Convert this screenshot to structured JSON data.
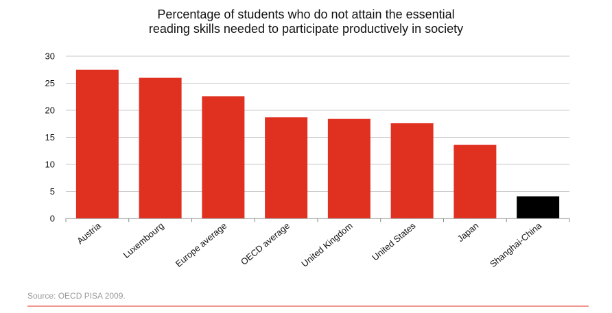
{
  "chart_data": {
    "type": "bar",
    "title_lines": [
      "Percentage of students who do not attain the essential",
      "reading skills needed to participate productively in society"
    ],
    "categories": [
      "Austria",
      "Luxembourg",
      "Europe average",
      "OECD average",
      "United Kingdom",
      "United States",
      "Japan",
      "Shanghai-China"
    ],
    "values": [
      27.5,
      26.0,
      22.6,
      18.7,
      18.4,
      17.6,
      13.6,
      4.1
    ],
    "bar_colors": [
      "#e03020",
      "#e03020",
      "#e03020",
      "#e03020",
      "#e03020",
      "#e03020",
      "#e03020",
      "#000000"
    ],
    "ylim": [
      0,
      30
    ],
    "yticks": [
      0,
      5,
      10,
      15,
      20,
      25,
      30
    ],
    "grid": true,
    "source": "Source: OECD PISA 2009."
  },
  "colors": {
    "bar": "#e03020",
    "highlight_bar": "#000000",
    "gridline": "#c8c8c8",
    "footer_rule": "#e03020",
    "source_text": "#999999"
  }
}
